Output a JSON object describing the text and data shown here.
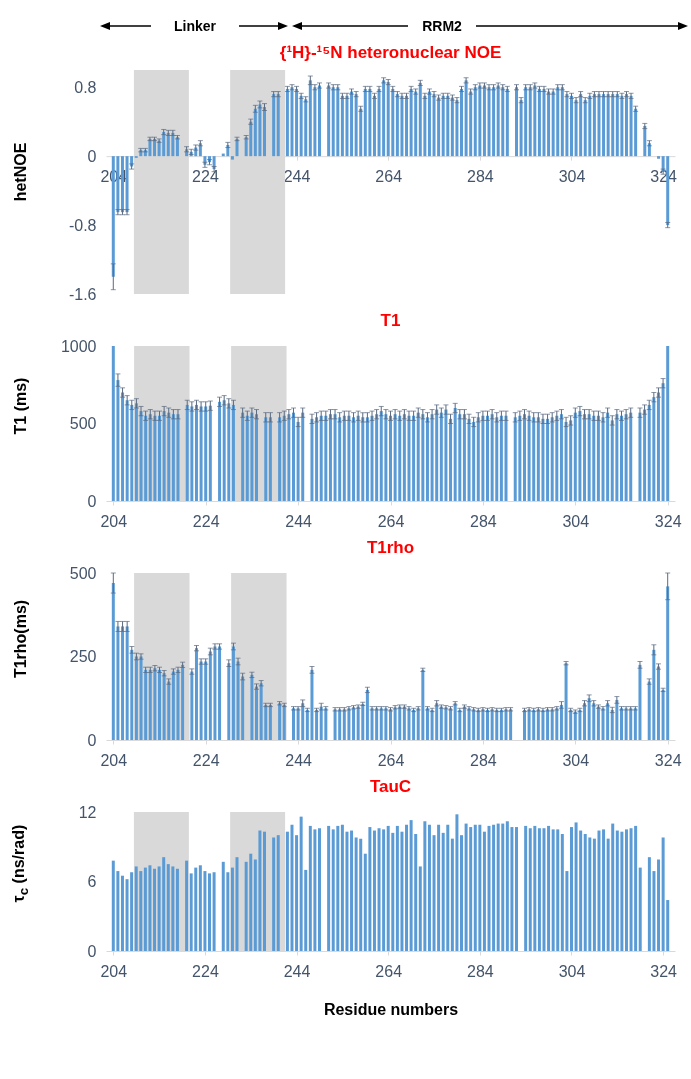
{
  "chart_data": [
    {
      "type": "bar",
      "title": "{¹H}-¹⁵N heteronuclear NOE",
      "ylabel": "hetNOE",
      "annotations": [
        "Linker",
        "RRM2"
      ],
      "x": [
        204,
        205,
        206,
        207,
        208,
        209,
        210,
        211,
        212,
        213,
        214,
        215,
        216,
        217,
        218,
        219,
        220,
        221,
        222,
        223,
        224,
        225,
        226,
        227,
        228,
        229,
        230,
        231,
        232,
        233,
        234,
        235,
        236,
        237,
        238,
        239,
        240,
        241,
        242,
        243,
        244,
        245,
        246,
        247,
        248,
        249,
        250,
        251,
        252,
        253,
        254,
        255,
        256,
        257,
        258,
        259,
        260,
        261,
        262,
        263,
        264,
        265,
        266,
        267,
        268,
        269,
        270,
        271,
        272,
        273,
        274,
        275,
        276,
        277,
        278,
        279,
        280,
        281,
        282,
        283,
        284,
        285,
        286,
        287,
        288,
        289,
        290,
        291,
        292,
        293,
        294,
        295,
        296,
        297,
        298,
        299,
        300,
        301,
        302,
        303,
        304,
        305,
        306,
        307,
        308,
        309,
        310,
        311,
        312,
        313,
        314,
        315,
        316,
        317,
        318,
        319,
        320,
        321,
        322,
        323,
        324,
        325
      ],
      "values": [
        -1.4,
        -0.65,
        -0.65,
        -0.65,
        -0.12,
        -0.02,
        0.07,
        0.07,
        0.2,
        0.2,
        0.18,
        0.28,
        0.27,
        0.27,
        0.22,
        null,
        0.08,
        0.05,
        0.1,
        0.15,
        -0.1,
        -0.07,
        -0.15,
        null,
        0.03,
        0.13,
        -0.04,
        0.2,
        null,
        0.22,
        0.4,
        0.55,
        0.6,
        0.57,
        null,
        0.72,
        0.72,
        null,
        0.78,
        0.8,
        0.78,
        0.7,
        0.66,
        0.88,
        0.8,
        0.82,
        null,
        0.82,
        0.8,
        0.8,
        0.7,
        0.7,
        0.75,
        0.72,
        0.55,
        0.78,
        0.78,
        0.7,
        0.78,
        0.88,
        0.86,
        0.78,
        0.72,
        0.7,
        0.7,
        0.78,
        0.75,
        0.85,
        0.7,
        0.75,
        0.72,
        0.68,
        0.7,
        0.7,
        0.68,
        0.65,
        0.78,
        0.88,
        0.75,
        0.8,
        0.82,
        0.82,
        0.8,
        0.8,
        0.82,
        0.8,
        0.78,
        null,
        0.8,
        0.65,
        0.8,
        0.8,
        0.82,
        0.78,
        0.78,
        0.75,
        0.75,
        0.8,
        0.8,
        0.72,
        0.7,
        0.65,
        0.72,
        0.65,
        0.7,
        0.72,
        0.72,
        0.72,
        0.72,
        0.72,
        0.72,
        0.7,
        0.72,
        0.7,
        0.55,
        null,
        0.35,
        0.15,
        null,
        -0.03,
        -0.18,
        -0.8
      ],
      "errors": [
        0.15,
        0.03,
        0.03,
        0.03,
        0.03,
        null,
        0.02,
        0.02,
        0.02,
        0.02,
        0.02,
        0.03,
        0.03,
        0.03,
        0.02,
        null,
        0.03,
        0.03,
        0.03,
        0.03,
        0.03,
        0.03,
        0.03,
        null,
        null,
        0.03,
        null,
        0.02,
        null,
        0.02,
        0.03,
        0.04,
        0.04,
        0.04,
        null,
        0.03,
        0.03,
        null,
        0.03,
        0.03,
        0.03,
        0.03,
        0.03,
        0.05,
        0.03,
        0.03,
        null,
        0.03,
        0.03,
        0.03,
        0.03,
        0.03,
        0.03,
        0.03,
        0.03,
        0.03,
        0.03,
        0.03,
        0.03,
        0.03,
        0.03,
        0.03,
        0.03,
        0.03,
        0.03,
        0.03,
        0.03,
        0.03,
        0.03,
        0.03,
        0.03,
        0.03,
        0.03,
        0.03,
        0.03,
        0.03,
        0.03,
        0.03,
        0.03,
        0.03,
        0.03,
        0.03,
        0.03,
        0.03,
        0.03,
        0.03,
        0.03,
        null,
        0.03,
        0.03,
        0.03,
        0.03,
        0.03,
        0.03,
        0.03,
        0.03,
        0.03,
        0.03,
        0.03,
        0.03,
        0.03,
        0.03,
        0.03,
        0.03,
        0.03,
        0.03,
        0.03,
        0.03,
        0.03,
        0.03,
        0.03,
        0.03,
        0.03,
        0.03,
        0.03,
        null,
        0.03,
        0.03,
        null,
        null,
        0.03,
        0.03
      ],
      "color": "#5b9bd5",
      "xlim": [
        203.5,
        325.5
      ],
      "xticks": [
        204,
        224,
        244,
        264,
        284,
        304,
        324
      ],
      "ylim": [
        -1.6,
        1.0
      ],
      "yticks": [
        -1.6,
        -0.8,
        {
          "value": 0,
          "label": "0"
        },
        0.8
      ],
      "bands": [
        {
          "axis": "x",
          "from": 208.5,
          "to": 220.5,
          "color": "#d9d9d9"
        },
        {
          "axis": "x",
          "from": 229.5,
          "to": 241.5,
          "color": "#d9d9d9"
        }
      ]
    },
    {
      "type": "bar",
      "title": "T1",
      "ylabel": "T1 (ms)",
      "x": [
        204,
        205,
        206,
        207,
        208,
        209,
        210,
        211,
        212,
        213,
        214,
        215,
        216,
        217,
        218,
        219,
        220,
        221,
        222,
        223,
        224,
        225,
        226,
        227,
        228,
        229,
        230,
        231,
        232,
        233,
        234,
        235,
        236,
        237,
        238,
        239,
        240,
        241,
        242,
        243,
        244,
        245,
        246,
        247,
        248,
        249,
        250,
        251,
        252,
        253,
        254,
        255,
        256,
        257,
        258,
        259,
        260,
        261,
        262,
        263,
        264,
        265,
        266,
        267,
        268,
        269,
        270,
        271,
        272,
        273,
        274,
        275,
        276,
        277,
        278,
        279,
        280,
        281,
        282,
        283,
        284,
        285,
        286,
        287,
        288,
        289,
        290,
        291,
        292,
        293,
        294,
        295,
        296,
        297,
        298,
        299,
        300,
        301,
        302,
        303,
        304,
        305,
        306,
        307,
        308,
        309,
        310,
        311,
        312,
        313,
        314,
        315,
        316,
        317,
        318,
        319,
        320,
        321,
        322,
        323,
        324
      ],
      "values": [
        1000,
        780,
        700,
        650,
        620,
        630,
        580,
        550,
        560,
        550,
        550,
        580,
        570,
        560,
        560,
        null,
        620,
        610,
        620,
        610,
        610,
        615,
        null,
        640,
        650,
        630,
        620,
        null,
        570,
        550,
        570,
        560,
        null,
        540,
        540,
        null,
        540,
        550,
        560,
        570,
        510,
        570,
        null,
        530,
        540,
        550,
        550,
        560,
        560,
        540,
        550,
        550,
        540,
        550,
        540,
        540,
        550,
        560,
        580,
        560,
        550,
        560,
        550,
        560,
        550,
        550,
        570,
        560,
        540,
        560,
        590,
        570,
        590,
        530,
        600,
        560,
        560,
        530,
        510,
        540,
        550,
        550,
        560,
        540,
        550,
        550,
        null,
        540,
        550,
        560,
        550,
        540,
        540,
        530,
        530,
        540,
        550,
        560,
        510,
        520,
        570,
        580,
        560,
        560,
        550,
        550,
        540,
        570,
        520,
        560,
        550,
        560,
        570,
        null,
        570,
        590,
        620,
        670,
        700,
        760,
        1000
      ],
      "errors": [
        null,
        40,
        30,
        30,
        30,
        30,
        30,
        30,
        30,
        30,
        30,
        30,
        30,
        30,
        30,
        null,
        30,
        30,
        30,
        30,
        30,
        30,
        null,
        30,
        30,
        30,
        30,
        null,
        30,
        30,
        30,
        30,
        null,
        30,
        30,
        null,
        30,
        30,
        30,
        30,
        30,
        30,
        null,
        30,
        30,
        30,
        30,
        30,
        30,
        30,
        30,
        30,
        30,
        30,
        30,
        30,
        30,
        30,
        30,
        30,
        30,
        30,
        30,
        30,
        30,
        30,
        30,
        30,
        30,
        30,
        30,
        30,
        30,
        30,
        30,
        30,
        30,
        30,
        30,
        30,
        30,
        30,
        30,
        30,
        30,
        30,
        null,
        30,
        30,
        30,
        30,
        30,
        30,
        30,
        30,
        30,
        30,
        30,
        30,
        30,
        30,
        30,
        30,
        30,
        30,
        30,
        30,
        30,
        30,
        30,
        30,
        30,
        30,
        null,
        30,
        30,
        30,
        30,
        30,
        30,
        null
      ],
      "color": "#5b9bd5",
      "xlim": [
        203.5,
        324.5
      ],
      "xticks": [
        204,
        224,
        244,
        264,
        284,
        304,
        324
      ],
      "ylim": [
        0,
        1000
      ],
      "yticks": [
        0,
        500,
        {
          "value": 1000,
          "label": "1000"
        }
      ],
      "bands": [
        {
          "axis": "x",
          "from": 208.5,
          "to": 220.5,
          "color": "#d9d9d9"
        },
        {
          "axis": "x",
          "from": 229.5,
          "to": 241.5,
          "color": "#d9d9d9"
        }
      ]
    },
    {
      "type": "bar",
      "title": "T1rho",
      "ylabel": "T1rho(ms)",
      "x": [
        204,
        205,
        206,
        207,
        208,
        209,
        210,
        211,
        212,
        213,
        214,
        215,
        216,
        217,
        218,
        219,
        220,
        221,
        222,
        223,
        224,
        225,
        226,
        227,
        228,
        229,
        230,
        231,
        232,
        233,
        234,
        235,
        236,
        237,
        238,
        239,
        240,
        241,
        242,
        243,
        244,
        245,
        246,
        247,
        248,
        249,
        250,
        251,
        252,
        253,
        254,
        255,
        256,
        257,
        258,
        259,
        260,
        261,
        262,
        263,
        264,
        265,
        266,
        267,
        268,
        269,
        270,
        271,
        272,
        273,
        274,
        275,
        276,
        277,
        278,
        279,
        280,
        281,
        282,
        283,
        284,
        285,
        286,
        287,
        288,
        289,
        290,
        291,
        292,
        293,
        294,
        295,
        296,
        297,
        298,
        299,
        300,
        301,
        302,
        303,
        304,
        305,
        306,
        307,
        308,
        309,
        310,
        311,
        312,
        313,
        314,
        315,
        316,
        317,
        318,
        319,
        320,
        321,
        322,
        323,
        324
      ],
      "values": [
        470,
        340,
        340,
        340,
        270,
        250,
        250,
        210,
        210,
        215,
        210,
        200,
        175,
        205,
        210,
        225,
        null,
        205,
        275,
        235,
        235,
        265,
        280,
        280,
        null,
        230,
        280,
        235,
        190,
        null,
        195,
        160,
        170,
        105,
        105,
        null,
        110,
        105,
        null,
        95,
        95,
        110,
        90,
        210,
        90,
        100,
        95,
        null,
        92,
        92,
        92,
        95,
        98,
        100,
        108,
        150,
        95,
        95,
        95,
        95,
        92,
        98,
        100,
        100,
        95,
        90,
        95,
        210,
        95,
        90,
        110,
        100,
        98,
        95,
        110,
        90,
        100,
        95,
        92,
        90,
        92,
        90,
        92,
        90,
        90,
        92,
        92,
        null,
        null,
        90,
        92,
        90,
        92,
        90,
        92,
        92,
        95,
        105,
        230,
        90,
        85,
        90,
        110,
        125,
        110,
        100,
        95,
        110,
        90,
        120,
        95,
        95,
        95,
        95,
        225,
        null,
        175,
        270,
        220,
        150,
        460
      ],
      "errors": [
        30,
        15,
        15,
        15,
        10,
        10,
        8,
        8,
        8,
        8,
        8,
        8,
        8,
        8,
        8,
        8,
        null,
        8,
        8,
        8,
        8,
        10,
        8,
        8,
        null,
        10,
        10,
        10,
        10,
        null,
        8,
        8,
        8,
        5,
        5,
        null,
        5,
        5,
        null,
        5,
        5,
        10,
        5,
        10,
        5,
        10,
        5,
        null,
        5,
        5,
        5,
        5,
        5,
        5,
        5,
        8,
        5,
        5,
        5,
        5,
        5,
        5,
        5,
        5,
        5,
        5,
        5,
        5,
        5,
        5,
        8,
        5,
        5,
        5,
        5,
        5,
        5,
        5,
        5,
        5,
        5,
        5,
        5,
        5,
        5,
        5,
        5,
        null,
        null,
        5,
        5,
        5,
        5,
        5,
        5,
        5,
        5,
        10,
        5,
        5,
        5,
        5,
        8,
        10,
        8,
        5,
        5,
        8,
        8,
        10,
        5,
        5,
        5,
        5,
        10,
        null,
        8,
        15,
        8,
        5,
        40
      ],
      "color": "#5b9bd5",
      "xlim": [
        203.5,
        324.5
      ],
      "xticks": [
        204,
        224,
        244,
        264,
        284,
        304,
        324
      ],
      "ylim": [
        0,
        500
      ],
      "yticks": [
        0,
        250,
        500
      ],
      "bands": [
        {
          "axis": "x",
          "from": 208.5,
          "to": 220.5,
          "color": "#d9d9d9"
        },
        {
          "axis": "x",
          "from": 229.5,
          "to": 241.5,
          "color": "#d9d9d9"
        }
      ]
    },
    {
      "type": "bar",
      "title": "TauC",
      "ylabel": "τ$_{c}$ (ns/rad)",
      "xlabel": "Residue numbers",
      "x": [
        204,
        205,
        206,
        207,
        208,
        209,
        210,
        211,
        212,
        213,
        214,
        215,
        216,
        217,
        218,
        219,
        220,
        221,
        222,
        223,
        224,
        225,
        226,
        227,
        228,
        229,
        230,
        231,
        232,
        233,
        234,
        235,
        236,
        237,
        238,
        239,
        240,
        241,
        242,
        243,
        244,
        245,
        246,
        247,
        248,
        249,
        250,
        251,
        252,
        253,
        254,
        255,
        256,
        257,
        258,
        259,
        260,
        261,
        262,
        263,
        264,
        265,
        266,
        267,
        268,
        269,
        270,
        271,
        272,
        273,
        274,
        275,
        276,
        277,
        278,
        279,
        280,
        281,
        282,
        283,
        284,
        285,
        286,
        287,
        288,
        289,
        290,
        291,
        292,
        293,
        294,
        295,
        296,
        297,
        298,
        299,
        300,
        301,
        302,
        303,
        304,
        305,
        306,
        307,
        308,
        309,
        310,
        311,
        312,
        313,
        314,
        315,
        316,
        317,
        318,
        319,
        320,
        321,
        322,
        323,
        324,
        325
      ],
      "values": [
        7.8,
        6.9,
        6.5,
        6.2,
        6.8,
        7.3,
        6.9,
        7.2,
        7.4,
        7.1,
        7.3,
        8.1,
        7.5,
        7.3,
        7.1,
        null,
        7.8,
        6.7,
        7.2,
        7.4,
        6.9,
        6.7,
        6.8,
        null,
        7.7,
        6.8,
        7.2,
        8.1,
        null,
        7.7,
        8.4,
        7.9,
        10.4,
        10.3,
        null,
        9.8,
        10.0,
        null,
        10.3,
        10.9,
        10.0,
        11.6,
        7.0,
        10.8,
        10.5,
        10.6,
        null,
        10.8,
        10.5,
        10.8,
        10.9,
        10.3,
        10.4,
        9.8,
        9.7,
        8.4,
        10.7,
        10.4,
        10.6,
        10.5,
        10.8,
        10.2,
        10.8,
        10.3,
        10.9,
        11.3,
        10.1,
        7.3,
        11.2,
        10.9,
        10.0,
        10.9,
        10.2,
        10.9,
        9.7,
        11.8,
        10.0,
        11.0,
        10.7,
        10.9,
        10.9,
        10.3,
        10.8,
        10.9,
        11.0,
        11.0,
        11.2,
        10.7,
        10.7,
        null,
        10.8,
        10.6,
        10.8,
        10.6,
        10.6,
        10.8,
        10.5,
        10.5,
        10.1,
        6.9,
        10.7,
        11.1,
        10.4,
        10.1,
        9.8,
        9.7,
        10.4,
        10.5,
        9.7,
        11.0,
        10.4,
        10.3,
        10.5,
        10.6,
        10.8,
        7.2,
        null,
        8.1,
        6.9,
        7.9,
        9.8,
        4.4
      ],
      "color": "#5b9bd5",
      "xlim": [
        203.5,
        325.5
      ],
      "xticks": [
        204,
        224,
        244,
        264,
        284,
        304,
        324
      ],
      "ylim": [
        0,
        12
      ],
      "yticks": [
        0,
        6,
        12
      ],
      "bands": [
        {
          "axis": "x",
          "from": 208.5,
          "to": 220.5,
          "color": "#d9d9d9"
        },
        {
          "axis": "x",
          "from": 229.5,
          "to": 241.5,
          "color": "#d9d9d9"
        }
      ]
    }
  ]
}
